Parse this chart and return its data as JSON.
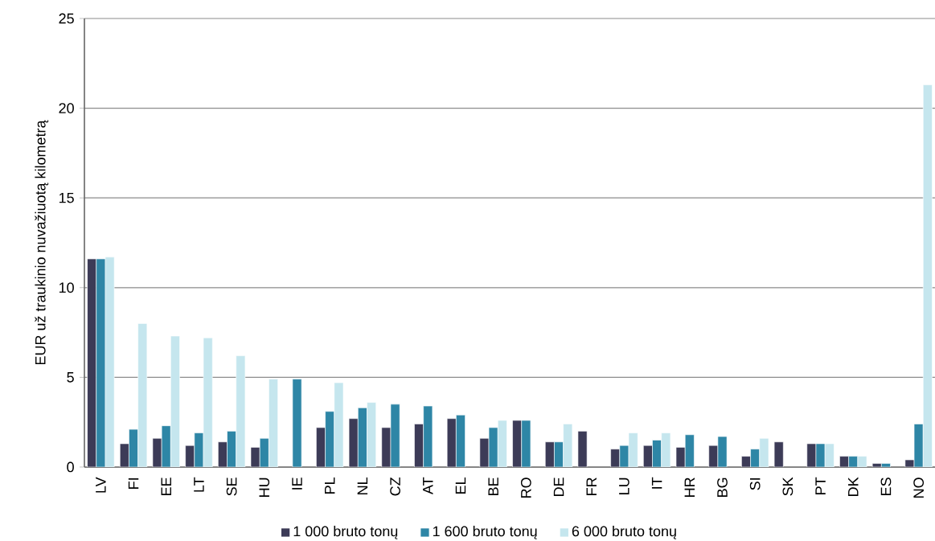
{
  "chart_data": {
    "type": "bar",
    "ylabel": "EUR už traukinio nuvažiuotą kilometrą",
    "categories": [
      "LV",
      "FI",
      "EE",
      "LT",
      "SE",
      "HU",
      "IE",
      "PL",
      "NL",
      "CZ",
      "AT",
      "EL",
      "BE",
      "RO",
      "DE",
      "FR",
      "LU",
      "IT",
      "HR",
      "BG",
      "SI",
      "SK",
      "PT",
      "DK",
      "ES",
      "NO"
    ],
    "series": [
      {
        "name": "1 000 bruto tonų",
        "color": "#3c3b57",
        "values": [
          11.6,
          1.3,
          1.6,
          1.2,
          1.4,
          1.1,
          null,
          2.2,
          2.7,
          2.2,
          2.4,
          2.7,
          1.6,
          2.6,
          1.4,
          2.0,
          1.0,
          1.2,
          1.1,
          1.2,
          0.6,
          1.4,
          1.3,
          0.6,
          0.2,
          0.4
        ]
      },
      {
        "name": "1 600 bruto tonų",
        "color": "#2e86a6",
        "values": [
          11.6,
          2.1,
          2.3,
          1.9,
          2.0,
          1.6,
          4.9,
          3.1,
          3.3,
          3.5,
          3.4,
          2.9,
          2.2,
          2.6,
          1.4,
          null,
          1.2,
          1.5,
          1.8,
          1.7,
          1.0,
          null,
          1.3,
          0.6,
          0.2,
          2.4
        ]
      },
      {
        "name": "6 000 bruto tonų",
        "color": "#c5e6ee",
        "values": [
          11.7,
          8.0,
          7.3,
          7.2,
          6.2,
          4.9,
          null,
          4.7,
          3.6,
          null,
          null,
          null,
          2.6,
          null,
          2.4,
          null,
          1.9,
          1.9,
          null,
          null,
          1.6,
          null,
          1.3,
          0.6,
          null,
          21.3
        ]
      }
    ],
    "ylim": [
      0,
      25
    ],
    "yticks": [
      0,
      5,
      10,
      15,
      20,
      25
    ],
    "grid": "y",
    "legend": "bottom"
  }
}
